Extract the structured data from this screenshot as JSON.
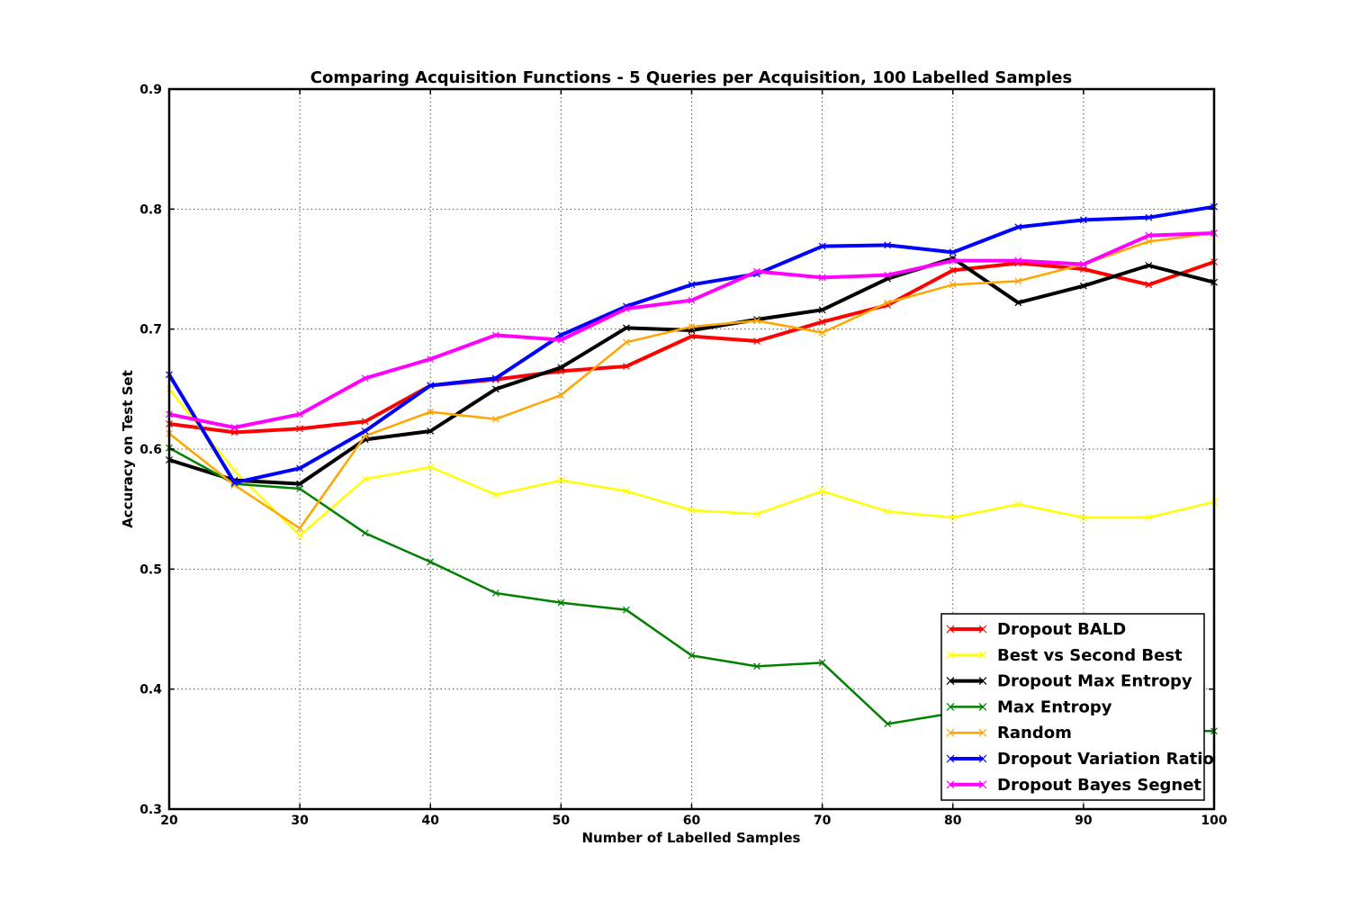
{
  "chart_data": {
    "type": "line",
    "title": "Comparing Acquisition Functions - 5 Queries per Acquisition, 100 Labelled Samples",
    "xlabel": "Number of Labelled Samples",
    "ylabel": "Accuracy on Test Set",
    "xlim": [
      20,
      100
    ],
    "ylim": [
      0.3,
      0.9
    ],
    "xticks": [
      20,
      30,
      40,
      50,
      60,
      70,
      80,
      90,
      100
    ],
    "yticks": [
      0.3,
      0.4,
      0.5,
      0.6,
      0.7,
      0.8,
      0.9
    ],
    "xtick_labels": [
      "20",
      "30",
      "40",
      "50",
      "60",
      "70",
      "80",
      "90",
      "100"
    ],
    "ytick_labels": [
      "0.3",
      "0.4",
      "0.5",
      "0.6",
      "0.7",
      "0.8",
      "0.9"
    ],
    "grid": true,
    "legend_position": "bottom-right",
    "x": [
      20,
      25,
      30,
      35,
      40,
      45,
      50,
      55,
      60,
      65,
      70,
      75,
      80,
      85,
      90,
      95,
      100
    ],
    "series": [
      {
        "name": "Dropout BALD",
        "color": "#ff0000",
        "width": 4,
        "values": [
          0.621,
          0.614,
          0.617,
          0.623,
          0.653,
          0.658,
          0.665,
          0.669,
          0.694,
          0.69,
          0.706,
          0.72,
          0.749,
          0.755,
          0.75,
          0.737,
          0.756
        ]
      },
      {
        "name": "Best vs Second Best",
        "color": "#ffff00",
        "width": 2.5,
        "values": [
          0.65,
          0.582,
          0.528,
          0.575,
          0.585,
          0.562,
          0.574,
          0.565,
          0.549,
          0.546,
          0.565,
          0.548,
          0.543,
          0.554,
          0.543,
          0.543,
          0.556
        ]
      },
      {
        "name": "Dropout Max Entropy",
        "color": "#000000",
        "width": 4,
        "values": [
          0.591,
          0.574,
          0.571,
          0.608,
          0.615,
          0.65,
          0.668,
          0.701,
          0.699,
          0.708,
          0.716,
          0.742,
          0.759,
          0.722,
          0.736,
          0.753,
          0.739
        ]
      },
      {
        "name": "Max Entropy",
        "color": "#008000",
        "width": 2.5,
        "values": [
          0.601,
          0.571,
          0.567,
          0.53,
          0.506,
          0.48,
          0.472,
          0.466,
          0.428,
          0.419,
          0.422,
          0.371,
          0.38,
          0.375,
          0.37,
          0.366,
          0.365
        ]
      },
      {
        "name": "Random",
        "color": "#ffa500",
        "width": 2.5,
        "values": [
          0.613,
          0.57,
          0.534,
          0.611,
          0.631,
          0.625,
          0.645,
          0.689,
          0.702,
          0.707,
          0.697,
          0.722,
          0.737,
          0.74,
          0.754,
          0.773,
          0.78
        ]
      },
      {
        "name": "Dropout Variation Ratio",
        "color": "#0000ff",
        "width": 4,
        "values": [
          0.662,
          0.572,
          0.584,
          0.615,
          0.653,
          0.659,
          0.695,
          0.719,
          0.737,
          0.746,
          0.769,
          0.77,
          0.764,
          0.785,
          0.791,
          0.793,
          0.802
        ]
      },
      {
        "name": "Dropout Bayes Segnet",
        "color": "#ff00ff",
        "width": 4,
        "values": [
          0.629,
          0.618,
          0.629,
          0.659,
          0.675,
          0.695,
          0.691,
          0.717,
          0.724,
          0.748,
          0.743,
          0.745,
          0.757,
          0.757,
          0.754,
          0.778,
          0.78
        ]
      }
    ]
  }
}
